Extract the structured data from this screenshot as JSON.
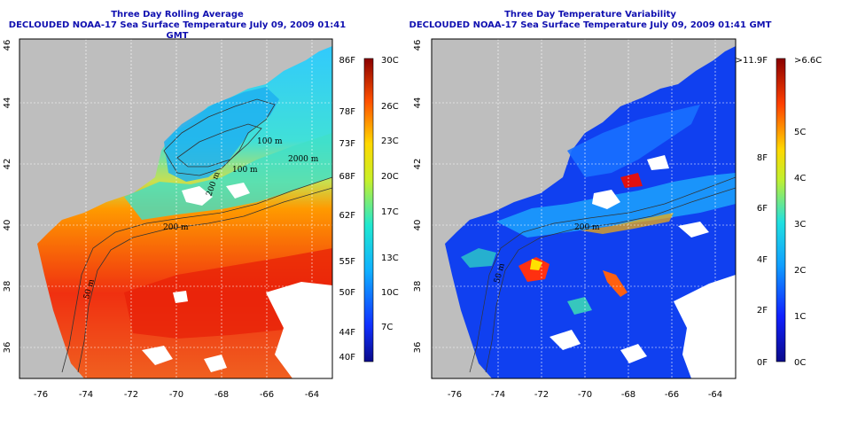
{
  "left": {
    "title": "Three Day Rolling Average",
    "subtitle": "DECLOUDED NOAA-17 Sea Surface Temperature July 09, 2009 01:41 GMT",
    "colorbar_f": [
      "86F",
      "78F",
      "73F",
      "68F",
      "62F",
      "55F",
      "50F",
      "44F",
      "40F"
    ],
    "colorbar_c": [
      "30C",
      "26C",
      "23C",
      "20C",
      "17C",
      "13C",
      "10C",
      "7C"
    ],
    "contours": [
      "100 m",
      "2000 m",
      "100 m",
      "200 m",
      "200 m",
      "50 m"
    ]
  },
  "right": {
    "title": "Three Day Temperature Variability",
    "subtitle": "DECLOUDED NOAA-17 Sea Surface Temperature July 09, 2009 01:41 GMT",
    "colorbar_f": [
      ">11.9F",
      "8F",
      "6F",
      "4F",
      "2F",
      "0F"
    ],
    "colorbar_c": [
      ">6.6C",
      "5C",
      "4C",
      "3C",
      "2C",
      "1C",
      "0C"
    ],
    "contours": [
      "200 m",
      "50 m"
    ]
  },
  "x_ticks": [
    "-76",
    "-74",
    "-72",
    "-70",
    "-68",
    "-66",
    "-64"
  ],
  "y_ticks": [
    "36",
    "38",
    "40",
    "42",
    "44",
    "46"
  ],
  "colors": {
    "title": "#1010b0",
    "land": "#bebebe",
    "cloud": "#ffffff"
  }
}
